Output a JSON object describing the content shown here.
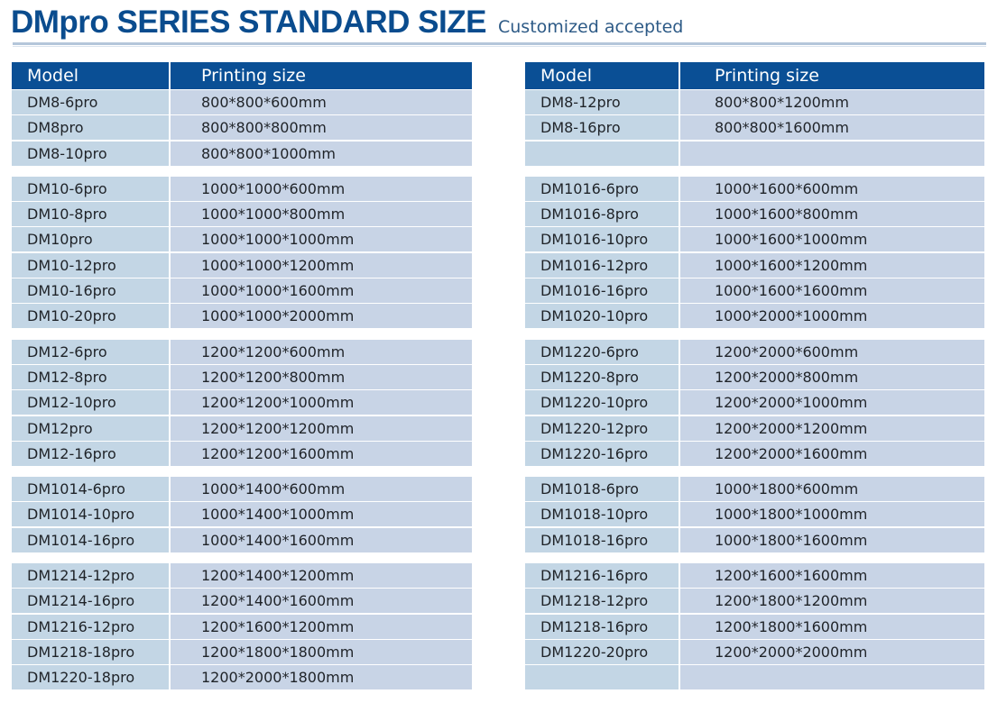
{
  "header": {
    "title": "DMpro SERIES STANDARD SIZE",
    "subtitle": "Customized accepted"
  },
  "colors": {
    "title": "#0a4c8e",
    "header_bg": "#0a4f95",
    "model_cell_bg": "#c3d6e5",
    "size_cell_bg": "#c8d4e6"
  },
  "columns": {
    "model": "Model",
    "size": "Printing size"
  },
  "left_table": {
    "groups": [
      [
        {
          "model": "DM8-6pro",
          "size": "800*800*600mm"
        },
        {
          "model": "DM8pro",
          "size": "800*800*800mm"
        },
        {
          "model": "DM8-10pro",
          "size": "800*800*1000mm"
        }
      ],
      [
        {
          "model": "DM10-6pro",
          "size": "1000*1000*600mm"
        },
        {
          "model": "DM10-8pro",
          "size": "1000*1000*800mm"
        },
        {
          "model": "DM10pro",
          "size": "1000*1000*1000mm"
        },
        {
          "model": "DM10-12pro",
          "size": "1000*1000*1200mm"
        },
        {
          "model": "DM10-16pro",
          "size": "1000*1000*1600mm"
        },
        {
          "model": "DM10-20pro",
          "size": "1000*1000*2000mm"
        }
      ],
      [
        {
          "model": "DM12-6pro",
          "size": "1200*1200*600mm"
        },
        {
          "model": "DM12-8pro",
          "size": "1200*1200*800mm"
        },
        {
          "model": "DM12-10pro",
          "size": "1200*1200*1000mm"
        },
        {
          "model": "DM12pro",
          "size": "1200*1200*1200mm"
        },
        {
          "model": "DM12-16pro",
          "size": "1200*1200*1600mm"
        }
      ],
      [
        {
          "model": "DM1014-6pro",
          "size": "1000*1400*600mm"
        },
        {
          "model": "DM1014-10pro",
          "size": "1000*1400*1000mm"
        },
        {
          "model": "DM1014-16pro",
          "size": "1000*1400*1600mm"
        }
      ],
      [
        {
          "model": "DM1214-12pro",
          "size": "1200*1400*1200mm"
        },
        {
          "model": "DM1214-16pro",
          "size": "1200*1400*1600mm"
        },
        {
          "model": "DM1216-12pro",
          "size": "1200*1600*1200mm"
        },
        {
          "model": "DM1218-18pro",
          "size": "1200*1800*1800mm"
        },
        {
          "model": "DM1220-18pro",
          "size": "1200*2000*1800mm"
        }
      ]
    ]
  },
  "right_table": {
    "groups": [
      [
        {
          "model": "DM8-12pro",
          "size": "800*800*1200mm"
        },
        {
          "model": "DM8-16pro",
          "size": "800*800*1600mm"
        },
        {
          "model": "",
          "size": ""
        }
      ],
      [
        {
          "model": "DM1016-6pro",
          "size": "1000*1600*600mm"
        },
        {
          "model": "DM1016-8pro",
          "size": "1000*1600*800mm"
        },
        {
          "model": "DM1016-10pro",
          "size": "1000*1600*1000mm"
        },
        {
          "model": "DM1016-12pro",
          "size": "1000*1600*1200mm"
        },
        {
          "model": "DM1016-16pro",
          "size": "1000*1600*1600mm"
        },
        {
          "model": "DM1020-10pro",
          "size": "1000*2000*1000mm"
        }
      ],
      [
        {
          "model": "DM1220-6pro",
          "size": "1200*2000*600mm"
        },
        {
          "model": "DM1220-8pro",
          "size": "1200*2000*800mm"
        },
        {
          "model": "DM1220-10pro",
          "size": "1200*2000*1000mm"
        },
        {
          "model": "DM1220-12pro",
          "size": "1200*2000*1200mm"
        },
        {
          "model": "DM1220-16pro",
          "size": "1200*2000*1600mm"
        }
      ],
      [
        {
          "model": "DM1018-6pro",
          "size": "1000*1800*600mm"
        },
        {
          "model": "DM1018-10pro",
          "size": "1000*1800*1000mm"
        },
        {
          "model": "DM1018-16pro",
          "size": "1000*1800*1600mm"
        }
      ],
      [
        {
          "model": "DM1216-16pro",
          "size": "1200*1600*1600mm"
        },
        {
          "model": "DM1218-12pro",
          "size": "1200*1800*1200mm"
        },
        {
          "model": "DM1218-16pro",
          "size": "1200*1800*1600mm"
        },
        {
          "model": "DM1220-20pro",
          "size": "1200*2000*2000mm"
        },
        {
          "model": "",
          "size": ""
        }
      ]
    ]
  }
}
